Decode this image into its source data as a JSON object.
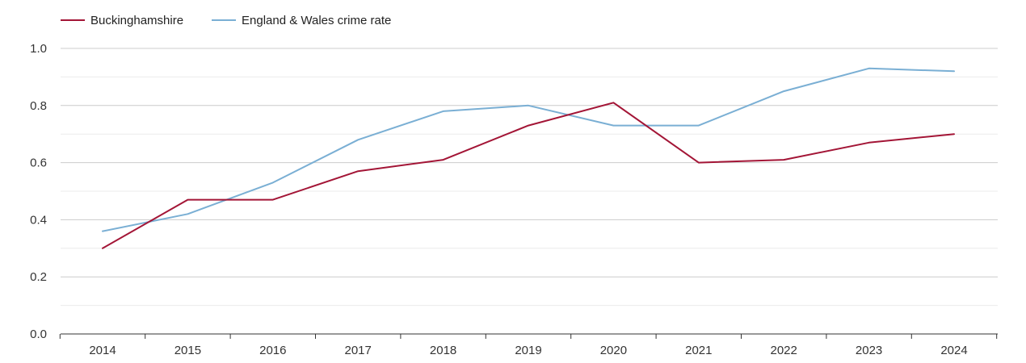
{
  "chart_data": {
    "type": "line",
    "title": "",
    "xlabel": "",
    "ylabel": "",
    "x": [
      2014,
      2015,
      2016,
      2017,
      2018,
      2019,
      2020,
      2021,
      2022,
      2023,
      2024
    ],
    "x_tick_labels": [
      "2014",
      "2015",
      "2016",
      "2017",
      "2018",
      "2019",
      "2020",
      "2021",
      "2022",
      "2023",
      "2024"
    ],
    "ylim": [
      0,
      1
    ],
    "y_ticks": [
      0,
      0.2,
      0.4,
      0.6,
      0.8,
      1.0
    ],
    "y_tick_labels": [
      "0.0",
      "0.2",
      "0.4",
      "0.6",
      "0.8",
      "1.0"
    ],
    "y_minor_ticks": [
      0.1,
      0.3,
      0.5,
      0.7,
      0.9
    ],
    "grid": true,
    "legend_position": "top-left",
    "series": [
      {
        "name": "Buckinghamshire",
        "color": "#a31536",
        "values": [
          0.3,
          0.47,
          0.47,
          0.57,
          0.61,
          0.73,
          0.81,
          0.6,
          0.61,
          0.67,
          0.7
        ]
      },
      {
        "name": "England & Wales crime rate",
        "color": "#7aafd4",
        "values": [
          0.36,
          0.42,
          0.53,
          0.68,
          0.78,
          0.8,
          0.73,
          0.73,
          0.85,
          0.93,
          0.92
        ]
      }
    ]
  }
}
